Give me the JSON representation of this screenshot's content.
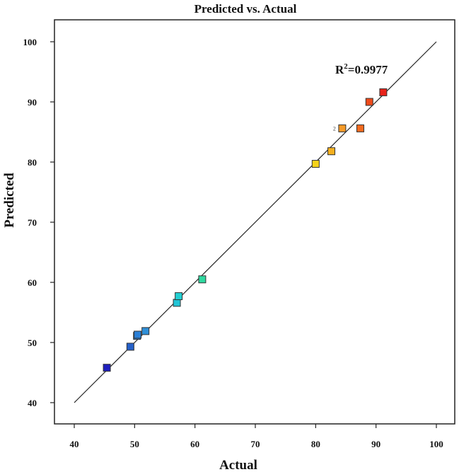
{
  "chart_data": {
    "type": "scatter",
    "title": "Predicted vs. Actual",
    "xlabel": "Actual",
    "ylabel": "Predicted",
    "xlim": [
      40,
      100
    ],
    "ylim": [
      40,
      100
    ],
    "xticks": [
      40,
      50,
      60,
      70,
      80,
      90,
      100
    ],
    "yticks": [
      40,
      50,
      60,
      70,
      80,
      90,
      100
    ],
    "grid": false,
    "fit_line": {
      "x": [
        40,
        100
      ],
      "y": [
        40,
        100
      ]
    },
    "annotation": {
      "base": "R",
      "superscript": "2",
      "value": "=0.9977"
    },
    "points": [
      {
        "x": 45.4,
        "y": 45.8,
        "color": "#1f1fbf"
      },
      {
        "x": 49.3,
        "y": 49.3,
        "color": "#2560c8"
      },
      {
        "x": 50.4,
        "y": 51.1,
        "color": "#2a7fd6"
      },
      {
        "x": 50.5,
        "y": 51.3,
        "color": "#2a7fd6"
      },
      {
        "x": 51.8,
        "y": 51.9,
        "color": "#2f8fd8"
      },
      {
        "x": 57.0,
        "y": 56.6,
        "color": "#22c4d6"
      },
      {
        "x": 57.3,
        "y": 57.7,
        "color": "#22cfd2"
      },
      {
        "x": 61.2,
        "y": 60.5,
        "color": "#2fd9a0"
      },
      {
        "x": 80.0,
        "y": 79.7,
        "color": "#f5d21a"
      },
      {
        "x": 82.6,
        "y": 81.8,
        "color": "#f5b020"
      },
      {
        "x": 84.4,
        "y": 85.6,
        "color": "#f59a28",
        "label": "2"
      },
      {
        "x": 87.4,
        "y": 85.6,
        "color": "#f26a1f"
      },
      {
        "x": 88.9,
        "y": 90.0,
        "color": "#ee4a1a"
      },
      {
        "x": 91.2,
        "y": 91.6,
        "color": "#e8231a"
      }
    ]
  }
}
